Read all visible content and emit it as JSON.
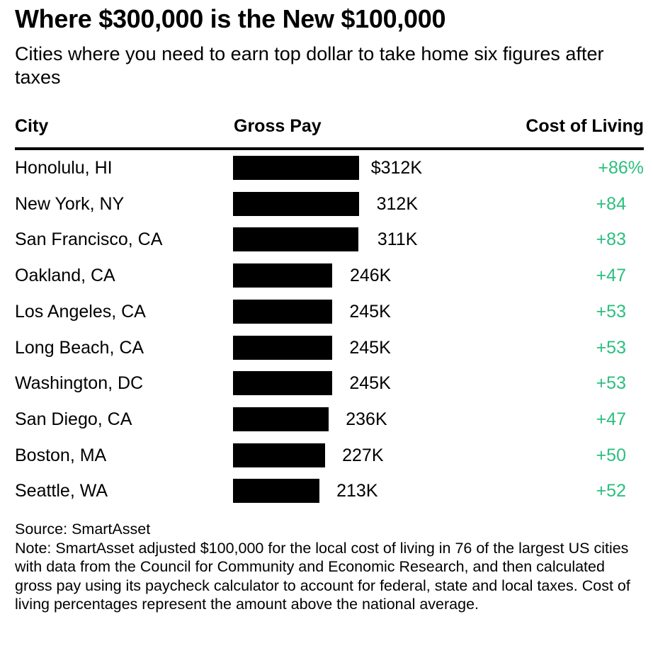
{
  "chart_data": {
    "type": "table",
    "title": "Where $300,000 is the New $100,000",
    "subtitle": "Cities where you need to earn top dollar to take home six figures after taxes",
    "columns": [
      "City",
      "Gross Pay",
      "Cost of Living"
    ],
    "categories": [
      "Honolulu, HI",
      "New York, NY",
      "San Francisco, CA",
      "Oakland, CA",
      "Los Angeles, CA",
      "Long Beach, CA",
      "Washington, DC",
      "San Diego, CA",
      "Boston, MA",
      "Seattle, WA"
    ],
    "gross_pay_values": [
      312,
      312,
      311,
      246,
      245,
      245,
      245,
      236,
      227,
      213
    ],
    "gross_pay_labels": [
      "$312K",
      "312K",
      "311K",
      "246K",
      "245K",
      "245K",
      "245K",
      "236K",
      "227K",
      "213K"
    ],
    "cost_of_living_values": [
      86,
      84,
      83,
      47,
      53,
      53,
      53,
      47,
      50,
      52
    ],
    "cost_of_living_labels": [
      "+86%",
      "+84",
      "+83",
      "+47",
      "+53",
      "+53",
      "+53",
      "+47",
      "+50",
      "+52"
    ],
    "bar_color": "#000000",
    "cost_color": "#2bbf7f",
    "source": "Source: SmartAsset",
    "note": "Note: SmartAsset adjusted $100,000 for the local cost of living in 76 of the largest US cities with data from the Council for Community and Economic Research, and then calculated gross pay using its paycheck calculator to account for federal, state and local taxes. Cost of living percentages represent the amount above the national average."
  }
}
